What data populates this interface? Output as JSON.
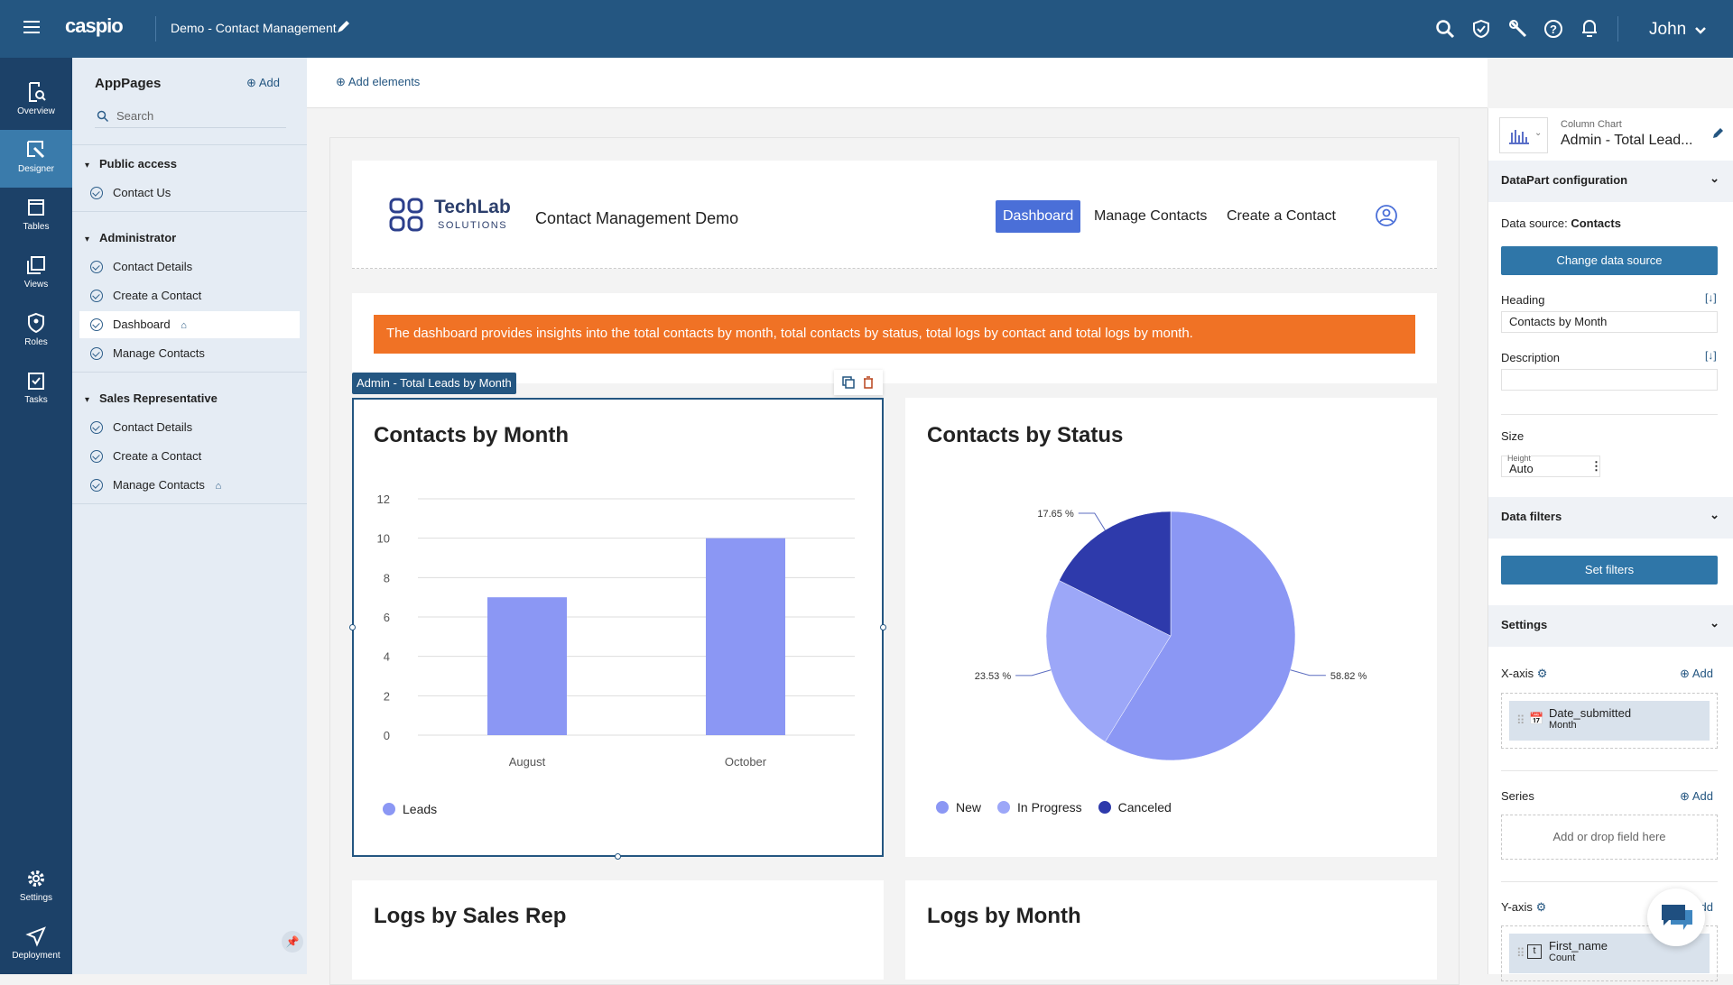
{
  "topbar": {
    "logo": "caspio",
    "app_title": "Demo - Contact Management",
    "user": "John",
    "icons": [
      "search-icon",
      "shield-check-icon",
      "wrench-icon",
      "help-icon",
      "bell-icon"
    ]
  },
  "rail": [
    {
      "label": "Overview"
    },
    {
      "label": "Designer",
      "active": true
    },
    {
      "label": "Tables"
    },
    {
      "label": "Views"
    },
    {
      "label": "Roles"
    },
    {
      "label": "Tasks"
    },
    {
      "label": "Settings"
    },
    {
      "label": "Deployment"
    }
  ],
  "pages": {
    "title": "AppPages",
    "add": "Add",
    "search_placeholder": "Search",
    "groups": [
      {
        "label": "Public access",
        "items": [
          {
            "label": "Contact Us"
          }
        ]
      },
      {
        "label": "Administrator",
        "items": [
          {
            "label": "Contact Details"
          },
          {
            "label": "Create a Contact"
          },
          {
            "label": "Dashboard",
            "home": true,
            "active": true
          },
          {
            "label": "Manage Contacts"
          }
        ]
      },
      {
        "label": "Sales Representative",
        "items": [
          {
            "label": "Contact Details"
          },
          {
            "label": "Create a Contact"
          },
          {
            "label": "Manage Contacts",
            "home": true
          }
        ]
      }
    ]
  },
  "main": {
    "add_elements": "Add elements",
    "site": {
      "brand": "TechLab",
      "brand_sub": "SOLUTIONS",
      "title": "Contact Management Demo",
      "nav": [
        "Dashboard",
        "Manage Contacts",
        "Create a Contact"
      ],
      "active_nav": "Dashboard"
    },
    "banner": "The dashboard provides insights into the total contacts by month, total contacts by status, total logs by contact and total logs by month.",
    "selected_label": "Admin - Total Leads by Month",
    "bottom_titles": [
      "Logs by Sales Rep",
      "Logs by Month"
    ]
  },
  "chart_data": [
    {
      "type": "bar",
      "title": "Contacts by Month",
      "categories": [
        "August",
        "October"
      ],
      "series": [
        {
          "name": "Leads",
          "values": [
            7,
            10
          ]
        }
      ],
      "ylim": [
        0,
        12
      ],
      "yticks": [
        0,
        2,
        4,
        6,
        8,
        10,
        12
      ],
      "grid": true,
      "legend": "bottom-left",
      "color": "#8b97f4"
    },
    {
      "type": "pie",
      "title": "Contacts by Status",
      "slices": [
        {
          "label": "New",
          "value": 58.82,
          "text": "58.82 %",
          "color": "#8b97f4"
        },
        {
          "label": "In Progress",
          "value": 23.53,
          "text": "23.53 %",
          "color": "#9ca7f8"
        },
        {
          "label": "Canceled",
          "value": 17.65,
          "text": "17.65 %",
          "color": "#2e3aab"
        }
      ],
      "legend": "bottom-left"
    }
  ],
  "props": {
    "type": "Column Chart",
    "name": "Admin - Total Lead...",
    "datapart": "DataPart configuration",
    "ds_label": "Data source:",
    "ds_value": "Contacts",
    "change_ds": "Change data source",
    "heading_label": "Heading",
    "heading_value": "Contacts by Month",
    "desc_label": "Description",
    "desc_value": "",
    "size_label": "Size",
    "height_label": "Height",
    "height_value": "Auto",
    "filters": "Data filters",
    "set_filters": "Set filters",
    "settings": "Settings",
    "xaxis": "X-axis",
    "xaxis_field": "Date_submitted",
    "xaxis_sub": "Month",
    "add": "Add",
    "series": "Series",
    "series_placeholder": "Add or drop field here",
    "yaxis": "Y-axis",
    "yaxis_field": "First_name",
    "yaxis_sub": "Count"
  }
}
